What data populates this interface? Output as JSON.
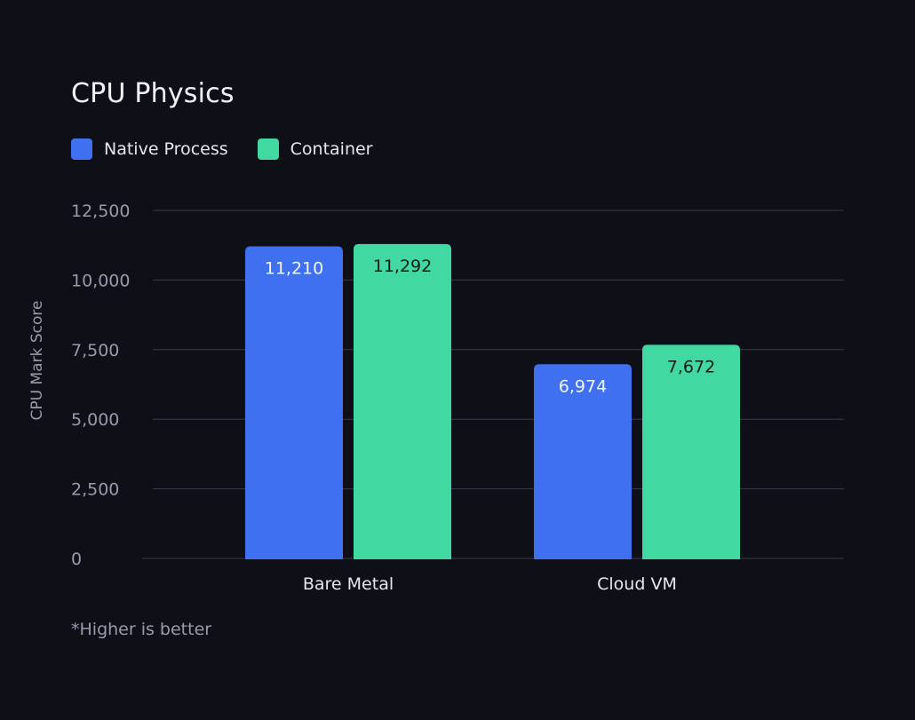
{
  "colors": {
    "background": "#0f0f18",
    "native": "#3f70f0",
    "container": "#41d9a1",
    "grid": "#3a3a4a",
    "tick": "#9a9aac"
  },
  "chart_data": {
    "type": "bar",
    "title": "CPU Physics",
    "ylabel": "CPU Mark Score",
    "xlabel": "",
    "ylim": [
      0,
      12500
    ],
    "yticks": [
      0,
      2500,
      5000,
      7500,
      10000,
      12500
    ],
    "ytick_labels": [
      "0",
      "2,500",
      "5,000",
      "7,500",
      "10,000",
      "12,500"
    ],
    "categories": [
      "Bare Metal",
      "Cloud VM"
    ],
    "series": [
      {
        "name": "Native Process",
        "color": "#3f70f0",
        "values": [
          11210,
          6974
        ],
        "labels": [
          "11,210",
          "6,974"
        ]
      },
      {
        "name": "Container",
        "color": "#41d9a1",
        "values": [
          11292,
          7672
        ],
        "labels": [
          "11,292",
          "7,672"
        ]
      }
    ],
    "grid": true,
    "legend_position": "top-left"
  },
  "footnote": "*Higher is better",
  "logo_icon": "striped-arrow-logo-icon"
}
